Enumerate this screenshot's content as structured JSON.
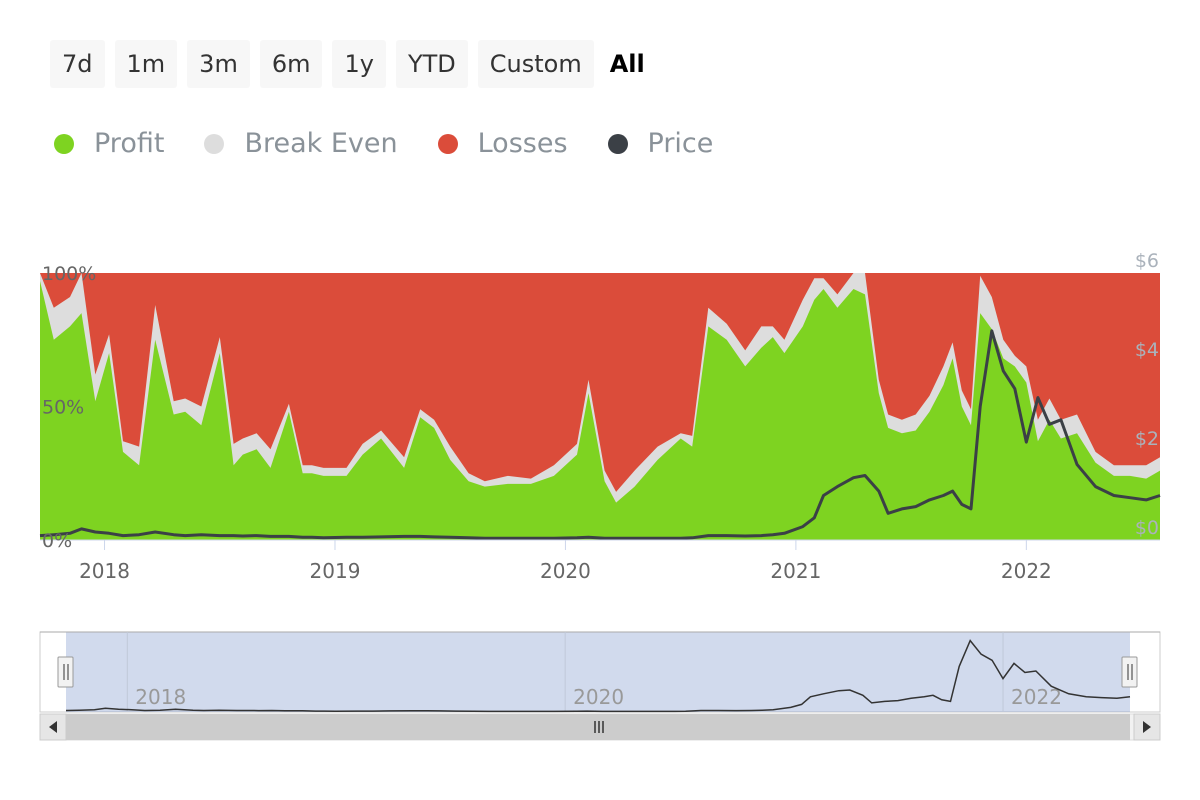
{
  "range_buttons": [
    "7d",
    "1m",
    "3m",
    "6m",
    "1y",
    "YTD",
    "Custom",
    "All"
  ],
  "active_range": "All",
  "legend": [
    {
      "label": "Profit",
      "color": "#7ed321"
    },
    {
      "label": "Break Even",
      "color": "#dddddd"
    },
    {
      "label": "Losses",
      "color": "#db4c3a"
    },
    {
      "label": "Price",
      "color": "#3b4046"
    }
  ],
  "chart_data": {
    "type": "area",
    "xlabel": "",
    "ylabel": "",
    "x_tick_labels": [
      "2018",
      "2019",
      "2020",
      "2021",
      "2022"
    ],
    "y_left_tick_labels": [
      "100%",
      "50%",
      "0%"
    ],
    "y_left_range": [
      0,
      100
    ],
    "y_right_tick_labels": [
      "$6",
      "$4",
      "$2",
      "$0"
    ],
    "y_right_range": [
      0,
      6
    ],
    "legend_position": "top-left",
    "grid": false,
    "x": [
      2017.72,
      2017.78,
      2017.85,
      2017.9,
      2017.96,
      2018.02,
      2018.08,
      2018.15,
      2018.22,
      2018.3,
      2018.35,
      2018.42,
      2018.5,
      2018.56,
      2018.6,
      2018.66,
      2018.72,
      2018.8,
      2018.86,
      2018.9,
      2018.95,
      2019.05,
      2019.12,
      2019.2,
      2019.3,
      2019.37,
      2019.43,
      2019.5,
      2019.58,
      2019.65,
      2019.75,
      2019.85,
      2019.95,
      2020.05,
      2020.1,
      2020.17,
      2020.22,
      2020.3,
      2020.4,
      2020.5,
      2020.55,
      2020.62,
      2020.7,
      2020.78,
      2020.85,
      2020.9,
      2020.95,
      2021.03,
      2021.08,
      2021.12,
      2021.18,
      2021.25,
      2021.3,
      2021.36,
      2021.4,
      2021.46,
      2021.52,
      2021.58,
      2021.64,
      2021.68,
      2021.72,
      2021.76,
      2021.8,
      2021.85,
      2021.9,
      2021.95,
      2022.0,
      2022.05,
      2022.1,
      2022.15,
      2022.22,
      2022.3,
      2022.38,
      2022.45,
      2022.52,
      2022.58
    ],
    "series": [
      {
        "name": "Profit",
        "unit": "%",
        "values": [
          97,
          75,
          80,
          85,
          52,
          70,
          33,
          28,
          75,
          47,
          48,
          43,
          70,
          28,
          32,
          34,
          27,
          48,
          25,
          25,
          24,
          24,
          32,
          38,
          27,
          46,
          42,
          30,
          22,
          20,
          21,
          21,
          24,
          32,
          55,
          22,
          14,
          20,
          30,
          38,
          35,
          80,
          75,
          65,
          72,
          76,
          70,
          80,
          90,
          94,
          87,
          94,
          92,
          55,
          42,
          40,
          41,
          48,
          58,
          68,
          50,
          43,
          85,
          79,
          68,
          65,
          59,
          37,
          45,
          38,
          40,
          29,
          24,
          24,
          23,
          26
        ]
      },
      {
        "name": "Break Even",
        "unit": "%",
        "values": [
          100,
          87,
          91,
          100,
          62,
          77,
          37,
          35,
          88,
          52,
          53,
          50,
          76,
          36,
          38,
          40,
          34,
          51,
          28,
          28,
          27,
          27,
          36,
          41,
          31,
          49,
          45,
          35,
          25,
          22,
          24,
          23,
          28,
          36,
          60,
          26,
          18,
          26,
          35,
          40,
          39,
          87,
          81,
          71,
          80,
          80,
          75,
          90,
          98,
          98,
          92,
          100,
          100,
          60,
          47,
          45,
          47,
          54,
          65,
          74,
          56,
          49,
          99,
          91,
          75,
          69,
          65,
          45,
          53,
          45,
          47,
          33,
          28,
          28,
          28,
          31
        ]
      },
      {
        "name": "Price",
        "unit": "$",
        "values": [
          0.1,
          0.12,
          0.15,
          0.25,
          0.18,
          0.15,
          0.1,
          0.12,
          0.18,
          0.12,
          0.1,
          0.12,
          0.1,
          0.1,
          0.09,
          0.1,
          0.08,
          0.08,
          0.06,
          0.06,
          0.05,
          0.06,
          0.06,
          0.07,
          0.08,
          0.08,
          0.07,
          0.06,
          0.05,
          0.04,
          0.04,
          0.04,
          0.04,
          0.05,
          0.06,
          0.04,
          0.04,
          0.04,
          0.04,
          0.04,
          0.05,
          0.1,
          0.1,
          0.09,
          0.1,
          0.12,
          0.15,
          0.3,
          0.5,
          1.0,
          1.2,
          1.4,
          1.45,
          1.1,
          0.6,
          0.7,
          0.75,
          0.9,
          1.0,
          1.1,
          0.8,
          0.7,
          3.0,
          4.7,
          3.8,
          3.4,
          2.2,
          3.2,
          2.6,
          2.7,
          1.7,
          1.2,
          1.0,
          0.95,
          0.9,
          1.0
        ]
      }
    ]
  }
}
